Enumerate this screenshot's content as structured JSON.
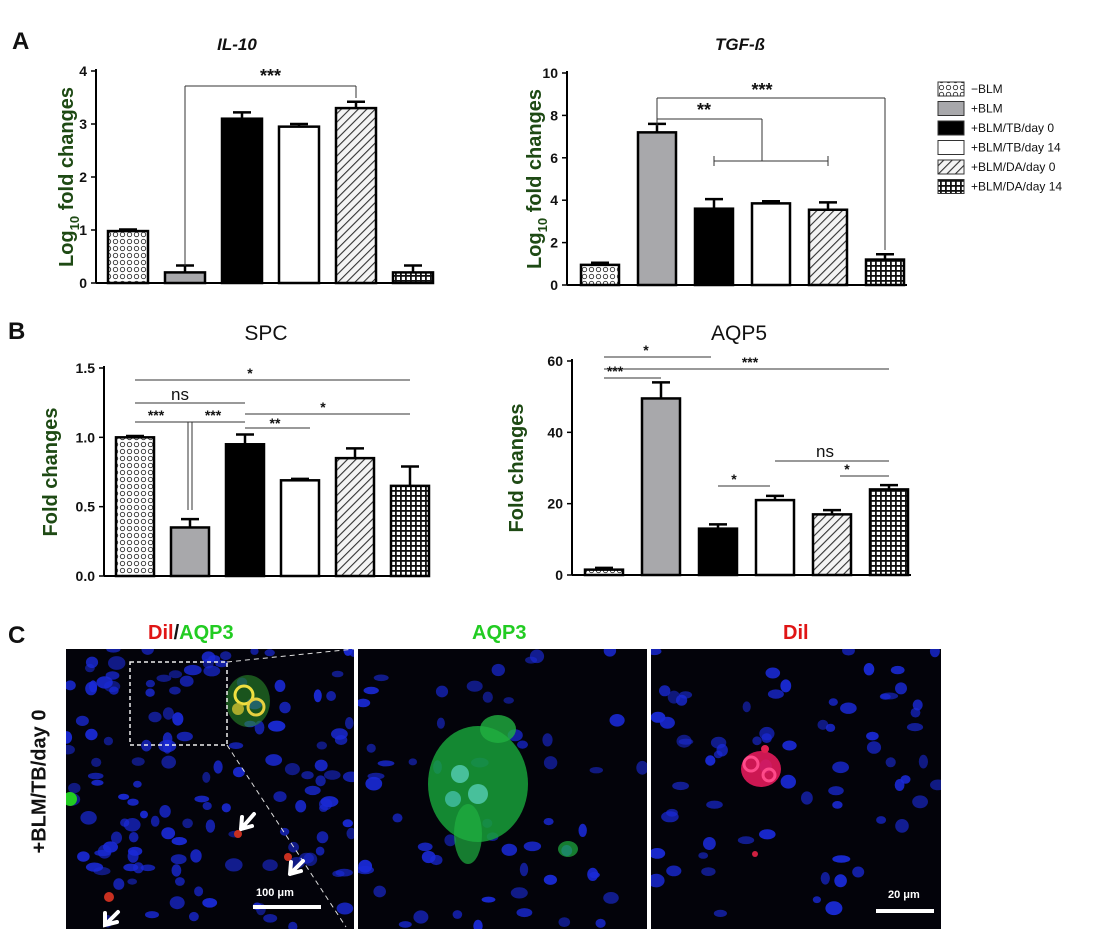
{
  "figure": {
    "panel_labels": [
      "A",
      "B",
      "C"
    ],
    "legend": [
      {
        "label": "−BLM",
        "pattern": "dots"
      },
      {
        "label": "+BLM",
        "pattern": "gray"
      },
      {
        "label": "+BLM/TB/day 0",
        "pattern": "black"
      },
      {
        "label": "+BLM/TB/day 14",
        "pattern": "white"
      },
      {
        "label": "+BLM/DA/day 0",
        "pattern": "hatch"
      },
      {
        "label": "+BLM/DA/day 14",
        "pattern": "grid"
      }
    ],
    "colors": {
      "ylabel": "#1e4a14",
      "gray_bar": "#a8a8ab",
      "dil": "#e01515",
      "aqp3": "#22cc22",
      "nuclei": "#1a2ad8"
    },
    "panel_c": {
      "titles": {
        "merge_dil": "Dil",
        "merge_sep": "/",
        "merge_aqp3": "AQP3",
        "aqp3": "AQP3",
        "dil": "Dil"
      },
      "row_label": "+BLM/TB/day 0",
      "scalebar_1": "100 μm",
      "scalebar_2": "20 μm"
    }
  },
  "chart_data": [
    {
      "type": "bar",
      "panel": "A",
      "title": "IL-10",
      "ylabel_main": "Log",
      "ylabel_sub": "10",
      "ylabel_rest": " fold changes",
      "categories": [
        "−BLM",
        "+BLM",
        "+BLM/TB/day 0",
        "+BLM/TB/day 14",
        "+BLM/DA/day 0",
        "+BLM/DA/day 14"
      ],
      "values": [
        0.98,
        0.2,
        3.1,
        2.95,
        3.3,
        0.2
      ],
      "errors": [
        0.03,
        0.13,
        0.12,
        0.05,
        0.12,
        0.13
      ],
      "ylim": [
        0,
        4
      ],
      "yticks": [
        "0",
        "1",
        "2",
        "3",
        "4"
      ],
      "significance": [
        {
          "from": 1,
          "to": 4,
          "label": "***"
        }
      ]
    },
    {
      "type": "bar",
      "panel": "A",
      "title": "TGF-ß",
      "ylabel_main": "Log",
      "ylabel_sub": "10",
      "ylabel_rest": " fold changes",
      "categories": [
        "−BLM",
        "+BLM",
        "+BLM/TB/day 0",
        "+BLM/TB/day 14",
        "+BLM/DA/day 0",
        "+BLM/DA/day 14"
      ],
      "values": [
        0.95,
        7.2,
        3.6,
        3.85,
        3.55,
        1.2
      ],
      "errors": [
        0.1,
        0.4,
        0.45,
        0.1,
        0.35,
        0.25
      ],
      "ylim": [
        0,
        10
      ],
      "yticks": [
        "0",
        "2",
        "4",
        "6",
        "8",
        "10"
      ],
      "significance": [
        {
          "label": "***"
        },
        {
          "label": "**"
        }
      ]
    },
    {
      "type": "bar",
      "panel": "B",
      "title": "SPC",
      "ylabel": "Fold changes",
      "categories": [
        "−BLM",
        "+BLM",
        "+BLM/TB/day 0",
        "+BLM/TB/day 14",
        "+BLM/DA/day 0",
        "+BLM/DA/day 14"
      ],
      "values": [
        1.0,
        0.35,
        0.95,
        0.69,
        0.85,
        0.65
      ],
      "errors": [
        0.01,
        0.06,
        0.07,
        0.01,
        0.07,
        0.14
      ],
      "ylim": [
        0,
        1.5
      ],
      "yticks": [
        "0.0",
        "0.5",
        "1.0",
        "1.5"
      ],
      "significance": [
        {
          "label": "*"
        },
        {
          "label": "ns"
        },
        {
          "label": "***"
        },
        {
          "label": "***"
        },
        {
          "label": "**"
        },
        {
          "label": "*"
        }
      ]
    },
    {
      "type": "bar",
      "panel": "B",
      "title": "AQP5",
      "ylabel": "Fold changes",
      "categories": [
        "−BLM",
        "+BLM",
        "+BLM/TB/day 0",
        "+BLM/TB/day 14",
        "+BLM/DA/day 0",
        "+BLM/DA/day 14"
      ],
      "values": [
        1.5,
        49.5,
        13.0,
        21.0,
        17.0,
        24.0
      ],
      "errors": [
        0.5,
        4.5,
        1.2,
        1.2,
        1.2,
        1.2
      ],
      "ylim": [
        0,
        60
      ],
      "yticks": [
        "0",
        "20",
        "40",
        "60"
      ],
      "significance": [
        {
          "label": "*"
        },
        {
          "label": "***"
        },
        {
          "label": "***"
        },
        {
          "label": "*"
        },
        {
          "label": "ns"
        },
        {
          "label": "*"
        }
      ]
    }
  ]
}
